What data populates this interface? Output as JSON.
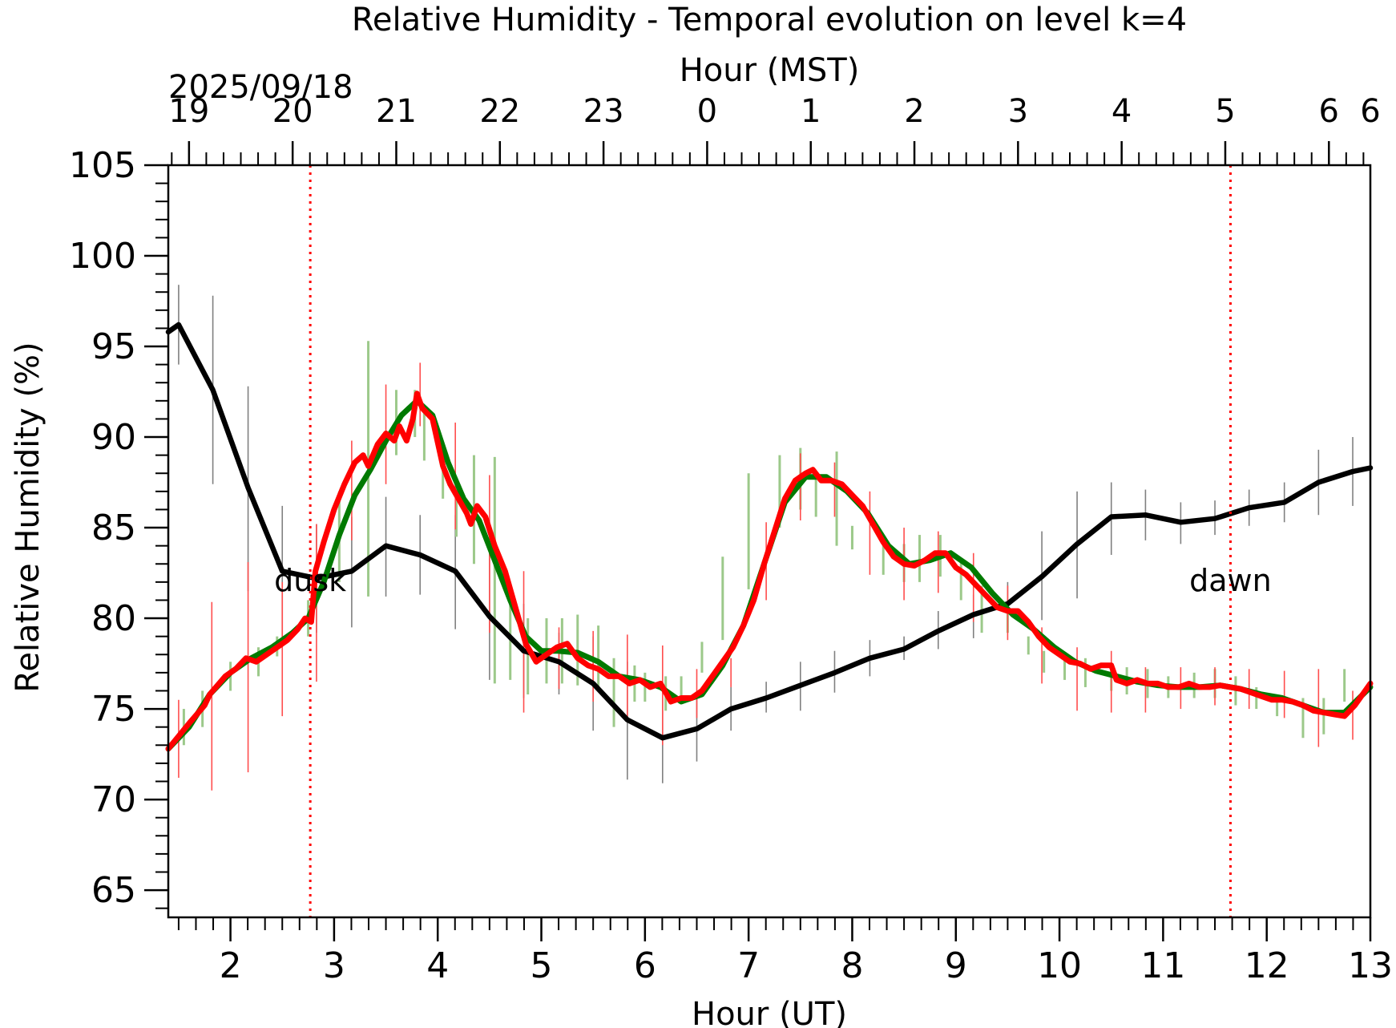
{
  "chart_data": {
    "type": "line",
    "title": "Relative Humidity - Temporal evolution on level k=4",
    "xlabel": "Hour (UT)",
    "ylabel": "Relative Humidity (%)",
    "x2label": "Hour (MST)",
    "date_label": "2025/09/18",
    "xlim": [
      1.4,
      13.0
    ],
    "ylim": [
      63.5,
      105
    ],
    "x_ticks": [
      2,
      3,
      4,
      5,
      6,
      7,
      8,
      9,
      10,
      11,
      12,
      13
    ],
    "x_tick_labels": [
      "2",
      "3",
      "4",
      "5",
      "6",
      "7",
      "8",
      "9",
      "10",
      "11",
      "12",
      "13"
    ],
    "top_ticks": [
      1.6,
      2.6,
      3.6,
      4.6,
      5.6,
      6.6,
      7.6,
      8.6,
      9.6,
      10.6,
      11.6,
      12.6,
      13.0
    ],
    "top_tick_labels": [
      "19",
      "20",
      "21",
      "22",
      "23",
      "0",
      "1",
      "2",
      "3",
      "4",
      "5",
      "6",
      "6"
    ],
    "y_ticks": [
      65,
      70,
      75,
      80,
      85,
      90,
      95,
      100,
      105
    ],
    "y_tick_labels": [
      "65",
      "70",
      "75",
      "80",
      "85",
      "90",
      "95",
      "100",
      "105"
    ],
    "grid": false,
    "colors": {
      "black_series": "#000000",
      "green_series": "#007a00",
      "red_series": "#ff0000",
      "black_err": "#808080",
      "green_err": "#9cc98a",
      "red_err": "#ff4d4d",
      "markers": "#ff0000"
    },
    "annotations": [
      {
        "text": "dusk",
        "x": 2.77
      },
      {
        "text": "dawn",
        "x": 11.65
      }
    ],
    "series": [
      {
        "color": "black",
        "x": [
          1.4,
          1.5,
          1.83,
          2.17,
          2.5,
          2.83,
          3.17,
          3.5,
          3.83,
          4.17,
          4.5,
          4.83,
          5.17,
          5.5,
          5.83,
          6.17,
          6.5,
          6.83,
          7.17,
          7.5,
          7.83,
          8.17,
          8.5,
          8.83,
          9.17,
          9.5,
          9.83,
          10.17,
          10.5,
          10.83,
          11.17,
          11.5,
          11.83,
          12.17,
          12.5,
          12.83,
          13.0
        ],
        "y": [
          95.8,
          96.2,
          92.6,
          87.2,
          82.6,
          82.2,
          82.6,
          84.0,
          83.5,
          82.6,
          80.1,
          78.2,
          77.6,
          76.4,
          74.4,
          73.4,
          73.9,
          75.0,
          75.6,
          76.3,
          77.0,
          77.8,
          78.3,
          79.3,
          80.2,
          80.8,
          82.3,
          84.1,
          85.6,
          85.7,
          85.3,
          85.5,
          86.1,
          86.4,
          87.5,
          88.1,
          88.3
        ],
        "err_x": [
          1.5,
          1.83,
          2.17,
          2.5,
          2.83,
          3.17,
          3.5,
          3.83,
          4.17,
          4.5,
          4.83,
          5.17,
          5.5,
          5.83,
          6.17,
          6.5,
          6.83,
          7.17,
          7.5,
          7.83,
          8.17,
          8.5,
          8.83,
          9.17,
          9.5,
          9.83,
          10.17,
          10.5,
          10.83,
          11.17,
          11.5,
          11.83,
          12.17,
          12.5,
          12.83
        ],
        "err_lo": [
          94.0,
          87.4,
          81.5,
          79.0,
          79.2,
          79.5,
          81.2,
          81.3,
          79.4,
          76.6,
          75.6,
          75.8,
          73.8,
          71.1,
          70.9,
          72.1,
          73.8,
          74.8,
          74.9,
          75.9,
          76.8,
          77.7,
          78.3,
          78.9,
          79.6,
          79.9,
          81.1,
          83.5,
          84.3,
          84.1,
          84.6,
          85.1,
          85.3,
          85.7,
          86.2
        ],
        "err_hi": [
          98.4,
          97.8,
          92.8,
          86.2,
          85.2,
          85.6,
          86.7,
          85.7,
          85.7,
          83.6,
          80.8,
          79.2,
          79.0,
          77.6,
          76.0,
          75.6,
          76.2,
          76.5,
          77.6,
          78.2,
          78.8,
          79.0,
          80.4,
          81.3,
          82.0,
          84.8,
          87.0,
          87.5,
          87.1,
          86.4,
          86.5,
          87.1,
          87.5,
          89.3,
          90.0
        ]
      },
      {
        "color": "green",
        "x": [
          1.4,
          1.6,
          1.8,
          2.0,
          2.2,
          2.4,
          2.6,
          2.75,
          2.9,
          3.05,
          3.2,
          3.35,
          3.5,
          3.65,
          3.8,
          3.95,
          4.1,
          4.25,
          4.4,
          4.55,
          4.7,
          4.85,
          5.0,
          5.15,
          5.35,
          5.55,
          5.75,
          5.95,
          6.15,
          6.35,
          6.55,
          6.75,
          6.95,
          7.15,
          7.35,
          7.55,
          7.75,
          7.95,
          8.15,
          8.35,
          8.55,
          8.75,
          8.95,
          9.15,
          9.35,
          9.55,
          9.75,
          9.95,
          10.15,
          10.35,
          10.55,
          10.75,
          10.95,
          11.15,
          11.35,
          11.55,
          11.75,
          11.95,
          12.15,
          12.35,
          12.55,
          12.75,
          13.0
        ],
        "y": [
          72.8,
          74.0,
          75.8,
          77.0,
          77.8,
          78.4,
          79.2,
          80.0,
          82.0,
          84.6,
          86.8,
          88.2,
          89.8,
          91.2,
          92.0,
          91.2,
          88.6,
          86.6,
          85.4,
          83.2,
          81.0,
          79.0,
          78.2,
          78.2,
          78.1,
          77.6,
          76.8,
          76.6,
          76.2,
          75.4,
          75.8,
          77.4,
          79.6,
          83.0,
          86.4,
          87.8,
          87.8,
          87.0,
          85.8,
          84.0,
          83.0,
          83.2,
          83.6,
          82.8,
          81.4,
          80.2,
          79.4,
          78.4,
          77.6,
          77.1,
          76.8,
          76.5,
          76.3,
          76.2,
          76.2,
          76.3,
          76.1,
          75.8,
          75.6,
          75.2,
          74.8,
          74.8,
          76.2
        ],
        "err_x": [
          1.55,
          1.73,
          2.0,
          2.27,
          2.45,
          2.75,
          3.05,
          3.33,
          3.6,
          3.78,
          3.87,
          4.05,
          4.18,
          4.35,
          4.55,
          4.7,
          4.87,
          5.05,
          5.2,
          5.35,
          5.55,
          5.7,
          5.9,
          6.0,
          6.2,
          6.35,
          6.55,
          6.75,
          7.0,
          7.3,
          7.5,
          7.65,
          7.85,
          8.0,
          8.3,
          8.5,
          8.65,
          8.85,
          9.05,
          9.25,
          9.5,
          9.7,
          9.85,
          10.05,
          10.25,
          10.5,
          10.65,
          10.85,
          11.05,
          11.3,
          11.5,
          11.7,
          11.9,
          12.1,
          12.35,
          12.55,
          12.75
        ],
        "err_lo": [
          73.0,
          74.0,
          76.0,
          76.8,
          77.9,
          79.0,
          82.0,
          81.2,
          89.0,
          90.0,
          88.7,
          86.6,
          84.5,
          83.0,
          76.4,
          76.6,
          75.8,
          76.4,
          76.4,
          76.3,
          76.0,
          74.0,
          75.4,
          75.4,
          74.9,
          75.6,
          77.0,
          78.8,
          81.6,
          85.0,
          86.0,
          85.6,
          84.0,
          83.8,
          82.4,
          82.0,
          82.0,
          82.3,
          81.0,
          79.2,
          79.2,
          78.0,
          77.0,
          76.6,
          76.2,
          76.0,
          75.8,
          75.6,
          75.6,
          75.6,
          75.6,
          75.2,
          75.0,
          74.6,
          73.4,
          73.6,
          75.4
        ],
        "err_hi": [
          75.0,
          76.0,
          77.6,
          78.4,
          79.0,
          81.0,
          87.0,
          95.3,
          92.6,
          92.6,
          91.5,
          89.2,
          87.4,
          89.0,
          88.9,
          81.7,
          80.0,
          80.0,
          80.0,
          80.2,
          79.6,
          77.8,
          77.4,
          77.0,
          76.8,
          76.8,
          78.7,
          83.4,
          88.0,
          89.0,
          89.4,
          88.0,
          89.2,
          85.1,
          84.1,
          84.1,
          84.6,
          84.6,
          83.3,
          81.8,
          80.9,
          79.0,
          78.2,
          77.8,
          77.8,
          77.5,
          77.3,
          77.2,
          76.8,
          77.0,
          77.2,
          76.8,
          76.2,
          75.6,
          75.6,
          75.6,
          77.2
        ]
      },
      {
        "color": "red",
        "x": [
          1.4,
          1.6,
          1.75,
          1.8,
          1.95,
          2.05,
          2.15,
          2.25,
          2.4,
          2.55,
          2.65,
          2.72,
          2.78,
          2.82,
          2.9,
          3.0,
          3.1,
          3.2,
          3.28,
          3.33,
          3.42,
          3.5,
          3.58,
          3.63,
          3.7,
          3.76,
          3.8,
          3.85,
          3.95,
          4.05,
          4.12,
          4.2,
          4.28,
          4.32,
          4.38,
          4.46,
          4.55,
          4.65,
          4.75,
          4.85,
          4.95,
          5.05,
          5.15,
          5.25,
          5.35,
          5.45,
          5.55,
          5.65,
          5.75,
          5.85,
          5.95,
          6.05,
          6.15,
          6.25,
          6.35,
          6.45,
          6.55,
          6.65,
          6.75,
          6.85,
          6.95,
          7.05,
          7.15,
          7.25,
          7.35,
          7.45,
          7.55,
          7.62,
          7.7,
          7.8,
          7.9,
          8.0,
          8.1,
          8.2,
          8.3,
          8.4,
          8.5,
          8.6,
          8.7,
          8.8,
          8.9,
          9.0,
          9.1,
          9.2,
          9.3,
          9.4,
          9.5,
          9.6,
          9.7,
          9.8,
          9.9,
          10.0,
          10.1,
          10.2,
          10.3,
          10.4,
          10.5,
          10.55,
          10.65,
          10.75,
          10.85,
          10.95,
          11.05,
          11.15,
          11.25,
          11.35,
          11.45,
          11.55,
          11.65,
          11.75,
          11.85,
          11.95,
          12.05,
          12.15,
          12.25,
          12.35,
          12.45,
          12.55,
          12.65,
          12.75,
          12.85,
          13.0
        ],
        "y": [
          72.8,
          74.2,
          75.2,
          75.8,
          76.8,
          77.2,
          77.8,
          77.6,
          78.2,
          78.8,
          79.4,
          80.0,
          79.8,
          82.6,
          84.2,
          86.0,
          87.4,
          88.6,
          89.0,
          88.4,
          89.6,
          90.2,
          89.8,
          90.6,
          89.8,
          91.0,
          92.4,
          91.6,
          91.0,
          88.4,
          87.4,
          86.6,
          85.8,
          85.2,
          86.2,
          85.6,
          84.0,
          82.6,
          80.6,
          78.6,
          77.6,
          78.0,
          78.4,
          78.6,
          77.8,
          77.4,
          77.2,
          76.8,
          76.8,
          76.4,
          76.6,
          76.2,
          76.4,
          75.4,
          75.6,
          75.6,
          76.0,
          76.8,
          77.6,
          78.4,
          79.6,
          81.0,
          83.0,
          84.8,
          86.6,
          87.6,
          88.0,
          88.2,
          87.6,
          87.6,
          87.4,
          86.8,
          86.2,
          85.2,
          84.2,
          83.4,
          83.0,
          82.9,
          83.2,
          83.6,
          83.6,
          82.8,
          82.4,
          81.8,
          81.2,
          80.6,
          80.4,
          80.4,
          79.8,
          79.0,
          78.4,
          78.0,
          77.6,
          77.5,
          77.2,
          77.4,
          77.4,
          76.6,
          76.4,
          76.6,
          76.4,
          76.4,
          76.2,
          76.2,
          76.4,
          76.2,
          76.2,
          76.3,
          76.2,
          76.1,
          75.9,
          75.7,
          75.5,
          75.5,
          75.4,
          75.2,
          74.9,
          74.8,
          74.7,
          74.6,
          75.2,
          76.4
        ],
        "err_x": [
          1.5,
          1.82,
          2.17,
          2.5,
          2.83,
          3.17,
          3.5,
          3.83,
          4.17,
          4.5,
          4.83,
          5.17,
          5.5,
          5.83,
          6.17,
          6.5,
          6.83,
          7.17,
          7.5,
          7.83,
          8.17,
          8.5,
          8.83,
          9.17,
          9.5,
          9.83,
          10.17,
          10.5,
          10.83,
          11.17,
          11.5,
          11.83,
          12.17,
          12.5,
          12.83
        ],
        "err_lo": [
          71.2,
          70.5,
          71.5,
          74.6,
          76.5,
          84.3,
          87.4,
          90.6,
          84.9,
          79.2,
          74.8,
          76.1,
          75.4,
          74.4,
          73.0,
          74.5,
          76.2,
          81.0,
          85.4,
          85.6,
          82.4,
          81.0,
          81.4,
          79.8,
          78.8,
          76.4,
          74.9,
          74.8,
          74.8,
          75.0,
          75.2,
          75.0,
          74.5,
          72.9,
          73.3
        ],
        "err_hi": [
          75.5,
          80.9,
          83.1,
          82.0,
          85.2,
          89.8,
          92.9,
          94.1,
          90.8,
          87.9,
          82.6,
          79.5,
          79.3,
          79.1,
          78.5,
          77.2,
          77.8,
          85.3,
          89.1,
          88.6,
          87.0,
          85.0,
          84.8,
          83.6,
          81.8,
          79.5,
          78.4,
          78.2,
          77.3,
          77.3,
          77.3,
          77.2,
          77.1,
          77.2,
          76.0
        ]
      }
    ]
  }
}
